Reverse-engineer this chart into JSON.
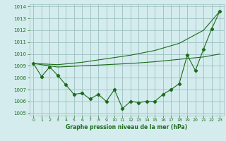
{
  "title": "Graphe pression niveau de la mer (hPa)",
  "bg_color": "#d4ecee",
  "grid_color": "#9bbfbf",
  "line_color": "#1a6b1a",
  "ylim": [
    1004.8,
    1014.2
  ],
  "xlim": [
    -0.5,
    23.5
  ],
  "yticks": [
    1005,
    1006,
    1007,
    1008,
    1009,
    1010,
    1011,
    1012,
    1013,
    1014
  ],
  "xticks": [
    0,
    1,
    2,
    3,
    4,
    5,
    6,
    7,
    8,
    9,
    10,
    11,
    12,
    13,
    14,
    15,
    16,
    17,
    18,
    19,
    20,
    21,
    22,
    23
  ],
  "line1_x": [
    0,
    1,
    2,
    3,
    4,
    5,
    6,
    7,
    8,
    9,
    10,
    11,
    12,
    13,
    14,
    15,
    16,
    17,
    18,
    19,
    20,
    21,
    22,
    23
  ],
  "line1_y": [
    1009.2,
    1008.1,
    1008.9,
    1008.2,
    1007.4,
    1006.6,
    1006.7,
    1006.2,
    1006.6,
    1006.0,
    1007.0,
    1005.4,
    1006.0,
    1005.9,
    1006.0,
    1006.0,
    1006.6,
    1007.0,
    1007.5,
    1009.9,
    1008.6,
    1010.4,
    1012.1,
    1013.6
  ],
  "line2_x": [
    0,
    3,
    6,
    9,
    12,
    15,
    18,
    21,
    23
  ],
  "line2_y": [
    1009.2,
    1008.9,
    1009.0,
    1009.1,
    1009.2,
    1009.35,
    1009.55,
    1009.75,
    1010.0
  ],
  "line3_x": [
    0,
    3,
    6,
    9,
    12,
    15,
    18,
    21,
    23
  ],
  "line3_y": [
    1009.2,
    1009.1,
    1009.3,
    1009.6,
    1009.9,
    1010.3,
    1010.9,
    1012.0,
    1013.6
  ],
  "xlabel_fontsize": 5.5,
  "ytick_fontsize": 5.0,
  "xtick_fontsize": 4.5
}
